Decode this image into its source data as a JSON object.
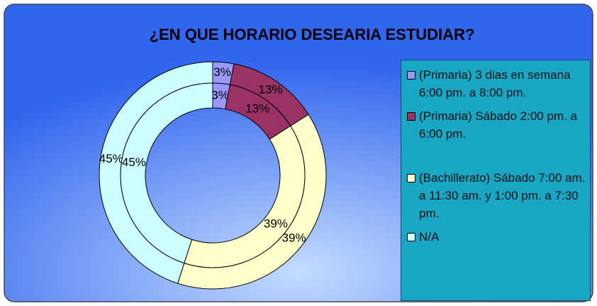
{
  "chart_data": {
    "type": "doughnut",
    "title": "¿EN QUE HORARIO DESEARIA ESTUDIAR?",
    "categories": [
      "(Primaria) 3 dias en semana 6:00 pm. a 8:00 pm.",
      "(Primaria) Sábado 2:00 pm. a 6:00 pm.",
      "(Bachillerato) Sábado 7:00 am. a 11:30 am. y 1:00 pm. a 7:30 pm.",
      "N/A"
    ],
    "colors": [
      "#9999ff",
      "#993366",
      "#ffffcc",
      "#ccffff"
    ],
    "series": [
      {
        "values": [
          3,
          13,
          39,
          45
        ],
        "value_labels": [
          "3%",
          "13%",
          "39%",
          "45%"
        ]
      },
      {
        "values": [
          3,
          13,
          39,
          45
        ],
        "value_labels": [
          "3%",
          "13%",
          "39%",
          "45%"
        ]
      }
    ],
    "legend": "right"
  }
}
